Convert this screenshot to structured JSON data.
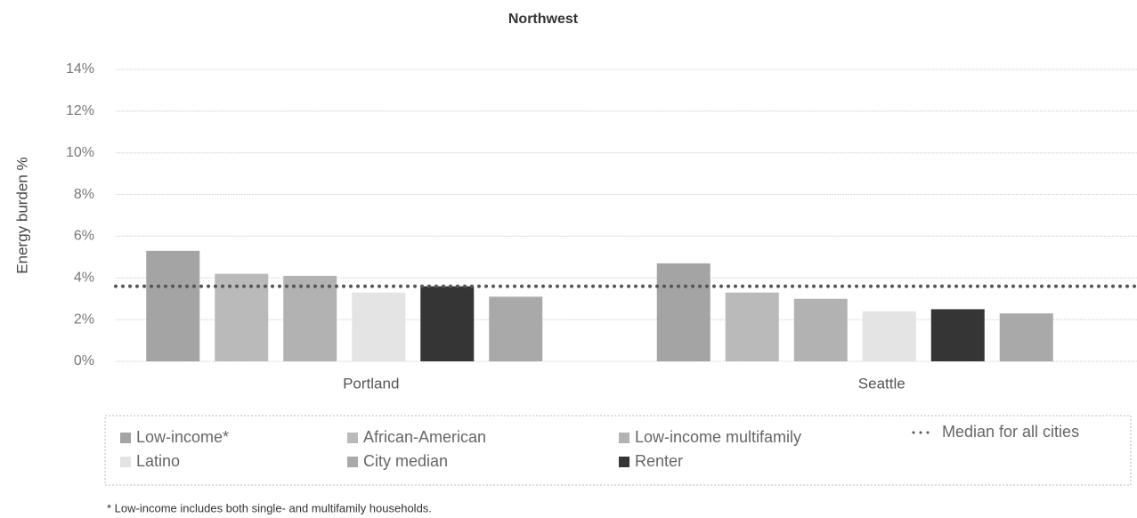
{
  "chart_data": {
    "type": "bar",
    "title": "Northwest",
    "y_label": "Energy burden %",
    "categories": [
      "Portland",
      "Seattle"
    ],
    "series": [
      {
        "name": "Low-income*",
        "color": "#a4a4a4",
        "values": [
          5.3,
          4.7
        ]
      },
      {
        "name": "African-American",
        "color": "#bababa",
        "values": [
          4.2,
          3.3
        ]
      },
      {
        "name": "Low-income multifamily",
        "color": "#b2b2b2",
        "values": [
          4.1,
          3.0
        ]
      },
      {
        "name": "Latino",
        "color": "#e4e4e4",
        "values": [
          3.3,
          2.4
        ]
      },
      {
        "name": "Renter",
        "color": "#353535",
        "values": [
          3.6,
          2.5
        ]
      },
      {
        "name": "City median",
        "color": "#a9a9a9",
        "values": [
          3.1,
          2.3
        ]
      }
    ],
    "median": {
      "name": "Median for all cities",
      "value": 3.6,
      "color": "#555555"
    },
    "ylim": [
      0,
      14
    ],
    "yticks": [
      {
        "value": 0,
        "label": "0%"
      },
      {
        "value": 2,
        "label": "2%"
      },
      {
        "value": 4,
        "label": "4%"
      },
      {
        "value": 6,
        "label": "6%"
      },
      {
        "value": 8,
        "label": "8%"
      },
      {
        "value": 10,
        "label": "10%"
      },
      {
        "value": 12,
        "label": "12%"
      },
      {
        "value": 14,
        "label": "14%"
      }
    ],
    "grid": true,
    "footnote": "* Low-income includes both single- and multifamily households."
  }
}
